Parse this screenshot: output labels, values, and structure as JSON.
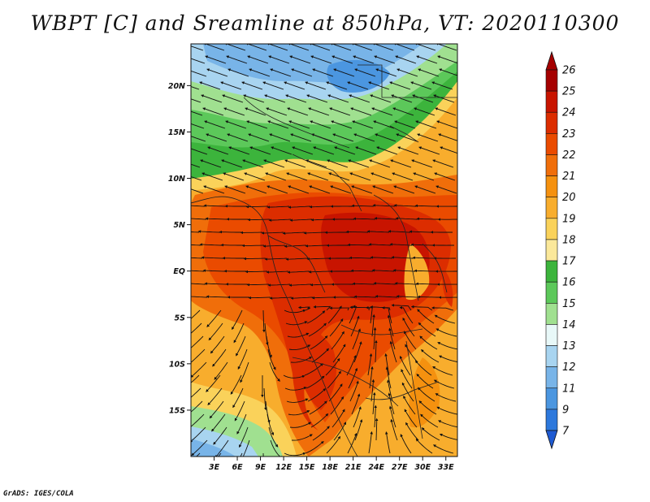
{
  "title": "WBPT [C] and Sreamline at 850hPa, VT: 2020110300",
  "footer": "GrADS: IGES/COLA",
  "map": {
    "lat_labels": [
      "20N",
      "15N",
      "10N",
      "5N",
      "EQ",
      "5S",
      "10S",
      "15S"
    ],
    "lat_values": [
      20,
      15,
      10,
      5,
      0,
      -5,
      -10,
      -15
    ],
    "lon_labels": [
      "3E",
      "6E",
      "9E",
      "12E",
      "15E",
      "18E",
      "21E",
      "24E",
      "27E",
      "30E",
      "33E"
    ],
    "lon_values": [
      3,
      6,
      9,
      12,
      15,
      18,
      21,
      24,
      27,
      30,
      33
    ],
    "lon_range": [
      0,
      34.5
    ],
    "lat_range": [
      -20,
      24.5
    ]
  },
  "colorbar": {
    "labels": [
      "26",
      "25",
      "24",
      "23",
      "22",
      "21",
      "20",
      "19",
      "18",
      "17",
      "16",
      "15",
      "14",
      "13",
      "12",
      "11",
      "9",
      "7"
    ],
    "colors": [
      "#a50000",
      "#c81400",
      "#dc2d00",
      "#ea4b00",
      "#f06e0a",
      "#f5910f",
      "#f8ad2d",
      "#fad25a",
      "#fbe89a",
      "#3cb43c",
      "#5cc85a",
      "#a0e090",
      "#e8f8f8",
      "#a8d4f0",
      "#78b4e8",
      "#4b96e0",
      "#2d78dc",
      "#1e5ad2"
    ],
    "top_color": "#a50000",
    "bottom_color": "#1e5ad2"
  }
}
